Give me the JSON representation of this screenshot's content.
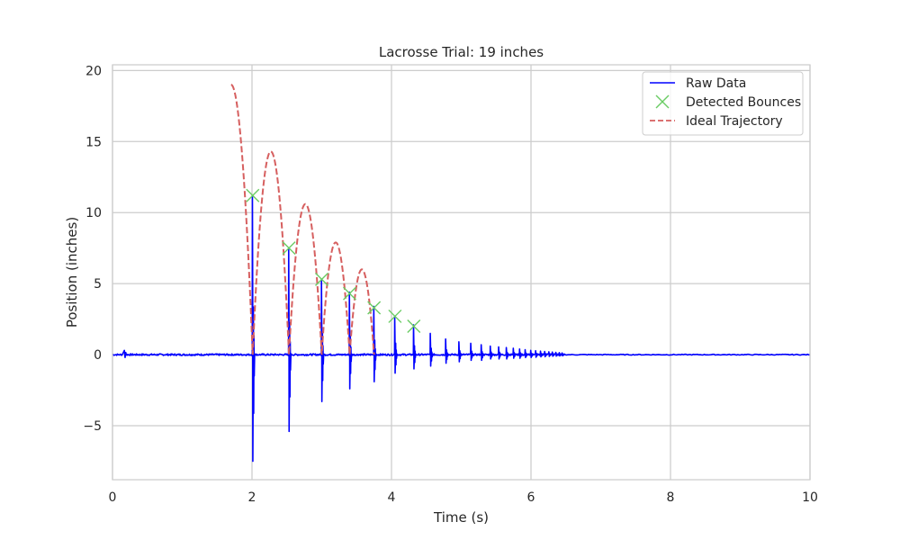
{
  "chart_data": {
    "type": "line",
    "title": "Lacrosse Trial: 19 inches",
    "xlabel": "Time (s)",
    "ylabel": "Position (inches)",
    "xlim": [
      0,
      10
    ],
    "ylim": [
      -8.8,
      20.4
    ],
    "xticks": [
      0,
      2,
      4,
      6,
      8,
      10
    ],
    "yticks": [
      -5,
      0,
      5,
      10,
      15,
      20
    ],
    "grid": true,
    "legend_position": "top-right",
    "series": [
      {
        "name": "Raw Data",
        "kind": "line",
        "color": "#0000ff",
        "spikes": [
          {
            "t": 2.01,
            "peak": 11.2,
            "trough": -7.5
          },
          {
            "t": 2.53,
            "peak": 7.5,
            "trough": -5.4
          },
          {
            "t": 3.0,
            "peak": 5.3,
            "trough": -3.3
          },
          {
            "t": 3.4,
            "peak": 4.4,
            "trough": -2.4
          },
          {
            "t": 3.75,
            "peak": 3.4,
            "trough": -1.9
          },
          {
            "t": 4.05,
            "peak": 2.7,
            "trough": -1.3
          },
          {
            "t": 4.32,
            "peak": 2.1,
            "trough": -1.0
          },
          {
            "t": 4.56,
            "peak": 1.5,
            "trough": -0.8
          },
          {
            "t": 4.78,
            "peak": 1.1,
            "trough": -0.6
          },
          {
            "t": 4.97,
            "peak": 0.9,
            "trough": -0.5
          },
          {
            "t": 5.14,
            "peak": 0.8,
            "trough": -0.4
          },
          {
            "t": 5.29,
            "peak": 0.7,
            "trough": -0.4
          },
          {
            "t": 5.42,
            "peak": 0.6,
            "trough": -0.3
          },
          {
            "t": 5.54,
            "peak": 0.55,
            "trough": -0.3
          },
          {
            "t": 5.65,
            "peak": 0.5,
            "trough": -0.3
          },
          {
            "t": 5.75,
            "peak": 0.45,
            "trough": -0.25
          },
          {
            "t": 5.84,
            "peak": 0.4,
            "trough": -0.25
          },
          {
            "t": 5.92,
            "peak": 0.35,
            "trough": -0.2
          },
          {
            "t": 6.0,
            "peak": 0.3,
            "trough": -0.2
          },
          {
            "t": 6.07,
            "peak": 0.28,
            "trough": -0.18
          },
          {
            "t": 6.14,
            "peak": 0.25,
            "trough": -0.15
          },
          {
            "t": 6.2,
            "peak": 0.22,
            "trough": -0.14
          },
          {
            "t": 6.26,
            "peak": 0.2,
            "trough": -0.12
          },
          {
            "t": 6.31,
            "peak": 0.18,
            "trough": -0.11
          },
          {
            "t": 6.36,
            "peak": 0.16,
            "trough": -0.1
          },
          {
            "t": 6.41,
            "peak": 0.14,
            "trough": -0.09
          },
          {
            "t": 6.45,
            "peak": 0.12,
            "trough": -0.08
          }
        ]
      },
      {
        "name": "Detected Bounces",
        "kind": "marker",
        "color": "#6acc64",
        "points": [
          {
            "x": 2.01,
            "y": 11.2
          },
          {
            "x": 2.53,
            "y": 7.5
          },
          {
            "x": 3.0,
            "y": 5.3
          },
          {
            "x": 3.4,
            "y": 4.3
          },
          {
            "x": 3.75,
            "y": 3.3
          },
          {
            "x": 4.05,
            "y": 2.7
          },
          {
            "x": 4.32,
            "y": 2.0
          }
        ]
      },
      {
        "name": "Ideal Trajectory",
        "kind": "dashed",
        "color": "#d65f5f",
        "drop": {
          "t0": 1.7,
          "h0": 19.0,
          "t1": 2.01
        },
        "arcs": [
          {
            "t0": 2.01,
            "t1": 2.53,
            "peak": 14.3
          },
          {
            "t0": 2.53,
            "t1": 3.0,
            "peak": 10.6
          },
          {
            "t0": 3.0,
            "t1": 3.4,
            "peak": 7.9
          },
          {
            "t0": 3.4,
            "t1": 3.75,
            "peak": 6.0
          }
        ]
      }
    ]
  }
}
